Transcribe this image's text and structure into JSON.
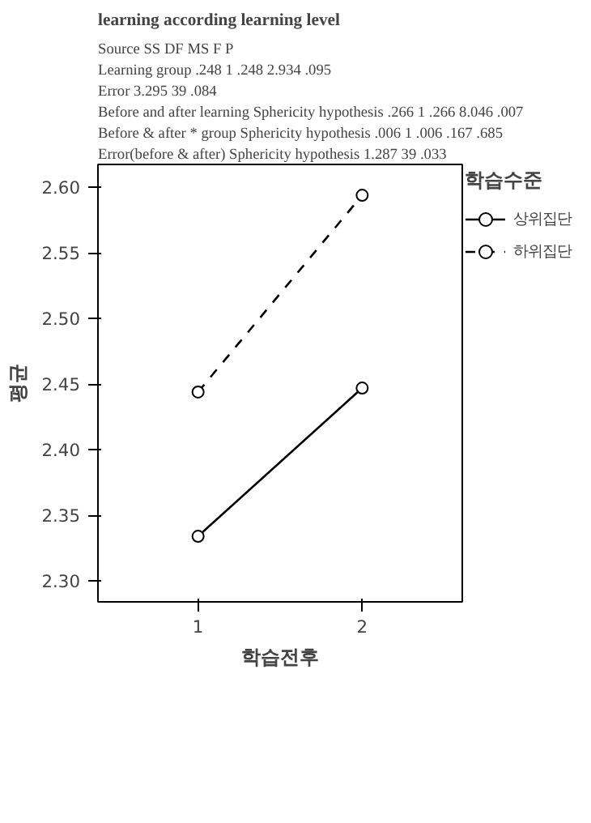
{
  "chart_data": {
    "type": "line",
    "title": "learning according learning level",
    "annotations": [
      "Source  SS  DF  MS  F  P",
      "Learning group  .248  1  .248  2.934  .095",
      "Error  3.295  39  .084",
      "Before and after learning  Sphericity hypothesis  .266  1  .266  8.046  .007",
      "Before & after * group  Sphericity hypothesis  .006  1  .006  .167  .685",
      "Error(before & after)  Sphericity hypothesis  1.287  39  .033"
    ],
    "x": [
      1,
      2
    ],
    "xlabel": "학습전후",
    "ylabel": "평균",
    "legend_title": "학습수준",
    "series": [
      {
        "name": "상위집단",
        "color": "#000000",
        "values": [
          2.334,
          2.447
        ],
        "line_style": "solid"
      },
      {
        "name": "하위집단",
        "color": "#000000",
        "values": [
          2.444,
          2.594
        ],
        "line_style": "dashed"
      }
    ],
    "xlim": [
      0.39,
      2.61
    ],
    "xticks": [
      1,
      2
    ],
    "ylim": [
      2.284,
      2.6175
    ],
    "yticks": [
      {
        "value": 2.3,
        "label": "2.30"
      },
      2.35,
      {
        "value": 2.4,
        "label": "2.40"
      },
      2.45,
      {
        "value": 2.5,
        "label": "2.50"
      },
      2.55,
      {
        "value": 2.6,
        "label": "2.60"
      }
    ],
    "grid": false,
    "legend": "top right",
    "marker": "circle"
  }
}
